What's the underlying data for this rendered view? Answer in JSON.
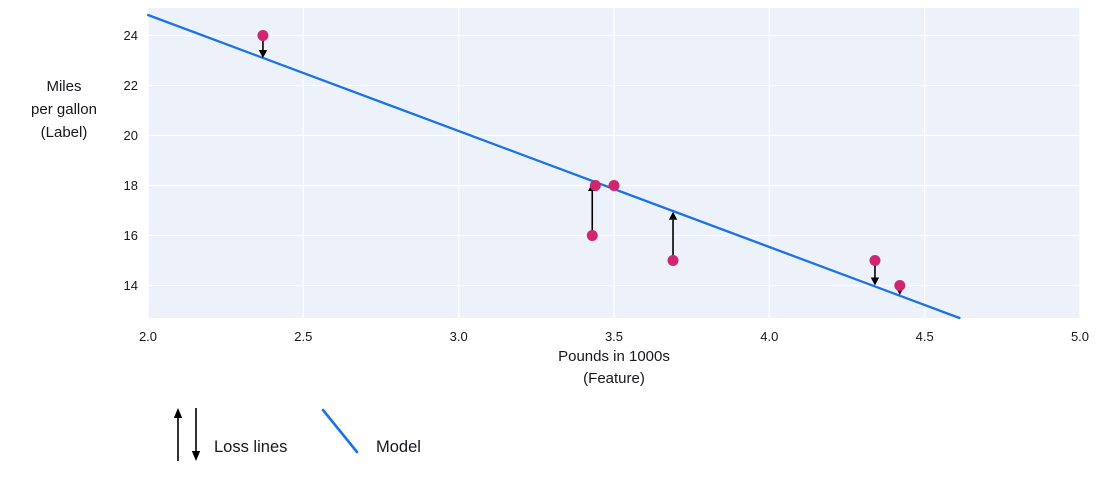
{
  "figure": {
    "bg": "#ffffff",
    "plot_bg": "#edf1f9",
    "grid_color": "#ffffff",
    "text_color": "#16181c",
    "arrow_color": "#000000"
  },
  "chart_data": {
    "type": "scatter",
    "title": "",
    "xlabel": "Pounds in 1000s",
    "xlabel_sub": "(Feature)",
    "ylabel_lines": [
      "Miles",
      "per gallon",
      "(Label)"
    ],
    "xlim": [
      2.0,
      5.0
    ],
    "ylim": [
      12.7,
      25.1
    ],
    "x_ticks": [
      "2.0",
      "2.5",
      "3.0",
      "3.5",
      "4.0",
      "4.5",
      "5.0"
    ],
    "x_tick_values": [
      2.0,
      2.5,
      3.0,
      3.5,
      4.0,
      4.5,
      5.0
    ],
    "y_ticks": [
      "14",
      "16",
      "18",
      "20",
      "22",
      "24"
    ],
    "y_tick_values": [
      14,
      16,
      18,
      20,
      22,
      24
    ],
    "grid": true,
    "point_color": "#d02670",
    "points": [
      {
        "x": 2.37,
        "y": 24
      },
      {
        "x": 3.43,
        "y": 16
      },
      {
        "x": 3.44,
        "y": 18
      },
      {
        "x": 3.5,
        "y": 18
      },
      {
        "x": 3.69,
        "y": 15
      },
      {
        "x": 4.34,
        "y": 15
      },
      {
        "x": 4.42,
        "y": 14
      }
    ],
    "model_line": {
      "slope": -4.64,
      "intercept": 34.1,
      "color": "#1a73e8"
    },
    "loss_lines": [
      {
        "x": 2.37,
        "from_y": 24,
        "to_y": 23.1
      },
      {
        "x": 3.43,
        "from_y": 16,
        "to_y": 18.1
      },
      {
        "x": 3.69,
        "from_y": 15,
        "to_y": 16.95
      },
      {
        "x": 4.34,
        "from_y": 15,
        "to_y": 14.0
      },
      {
        "x": 4.42,
        "from_y": 14,
        "to_y": 13.62
      }
    ],
    "legend": {
      "position": "bottom-left",
      "items": [
        {
          "label": "Loss lines",
          "symbol": "arrows"
        },
        {
          "label": "Model",
          "symbol": "line"
        }
      ]
    }
  }
}
